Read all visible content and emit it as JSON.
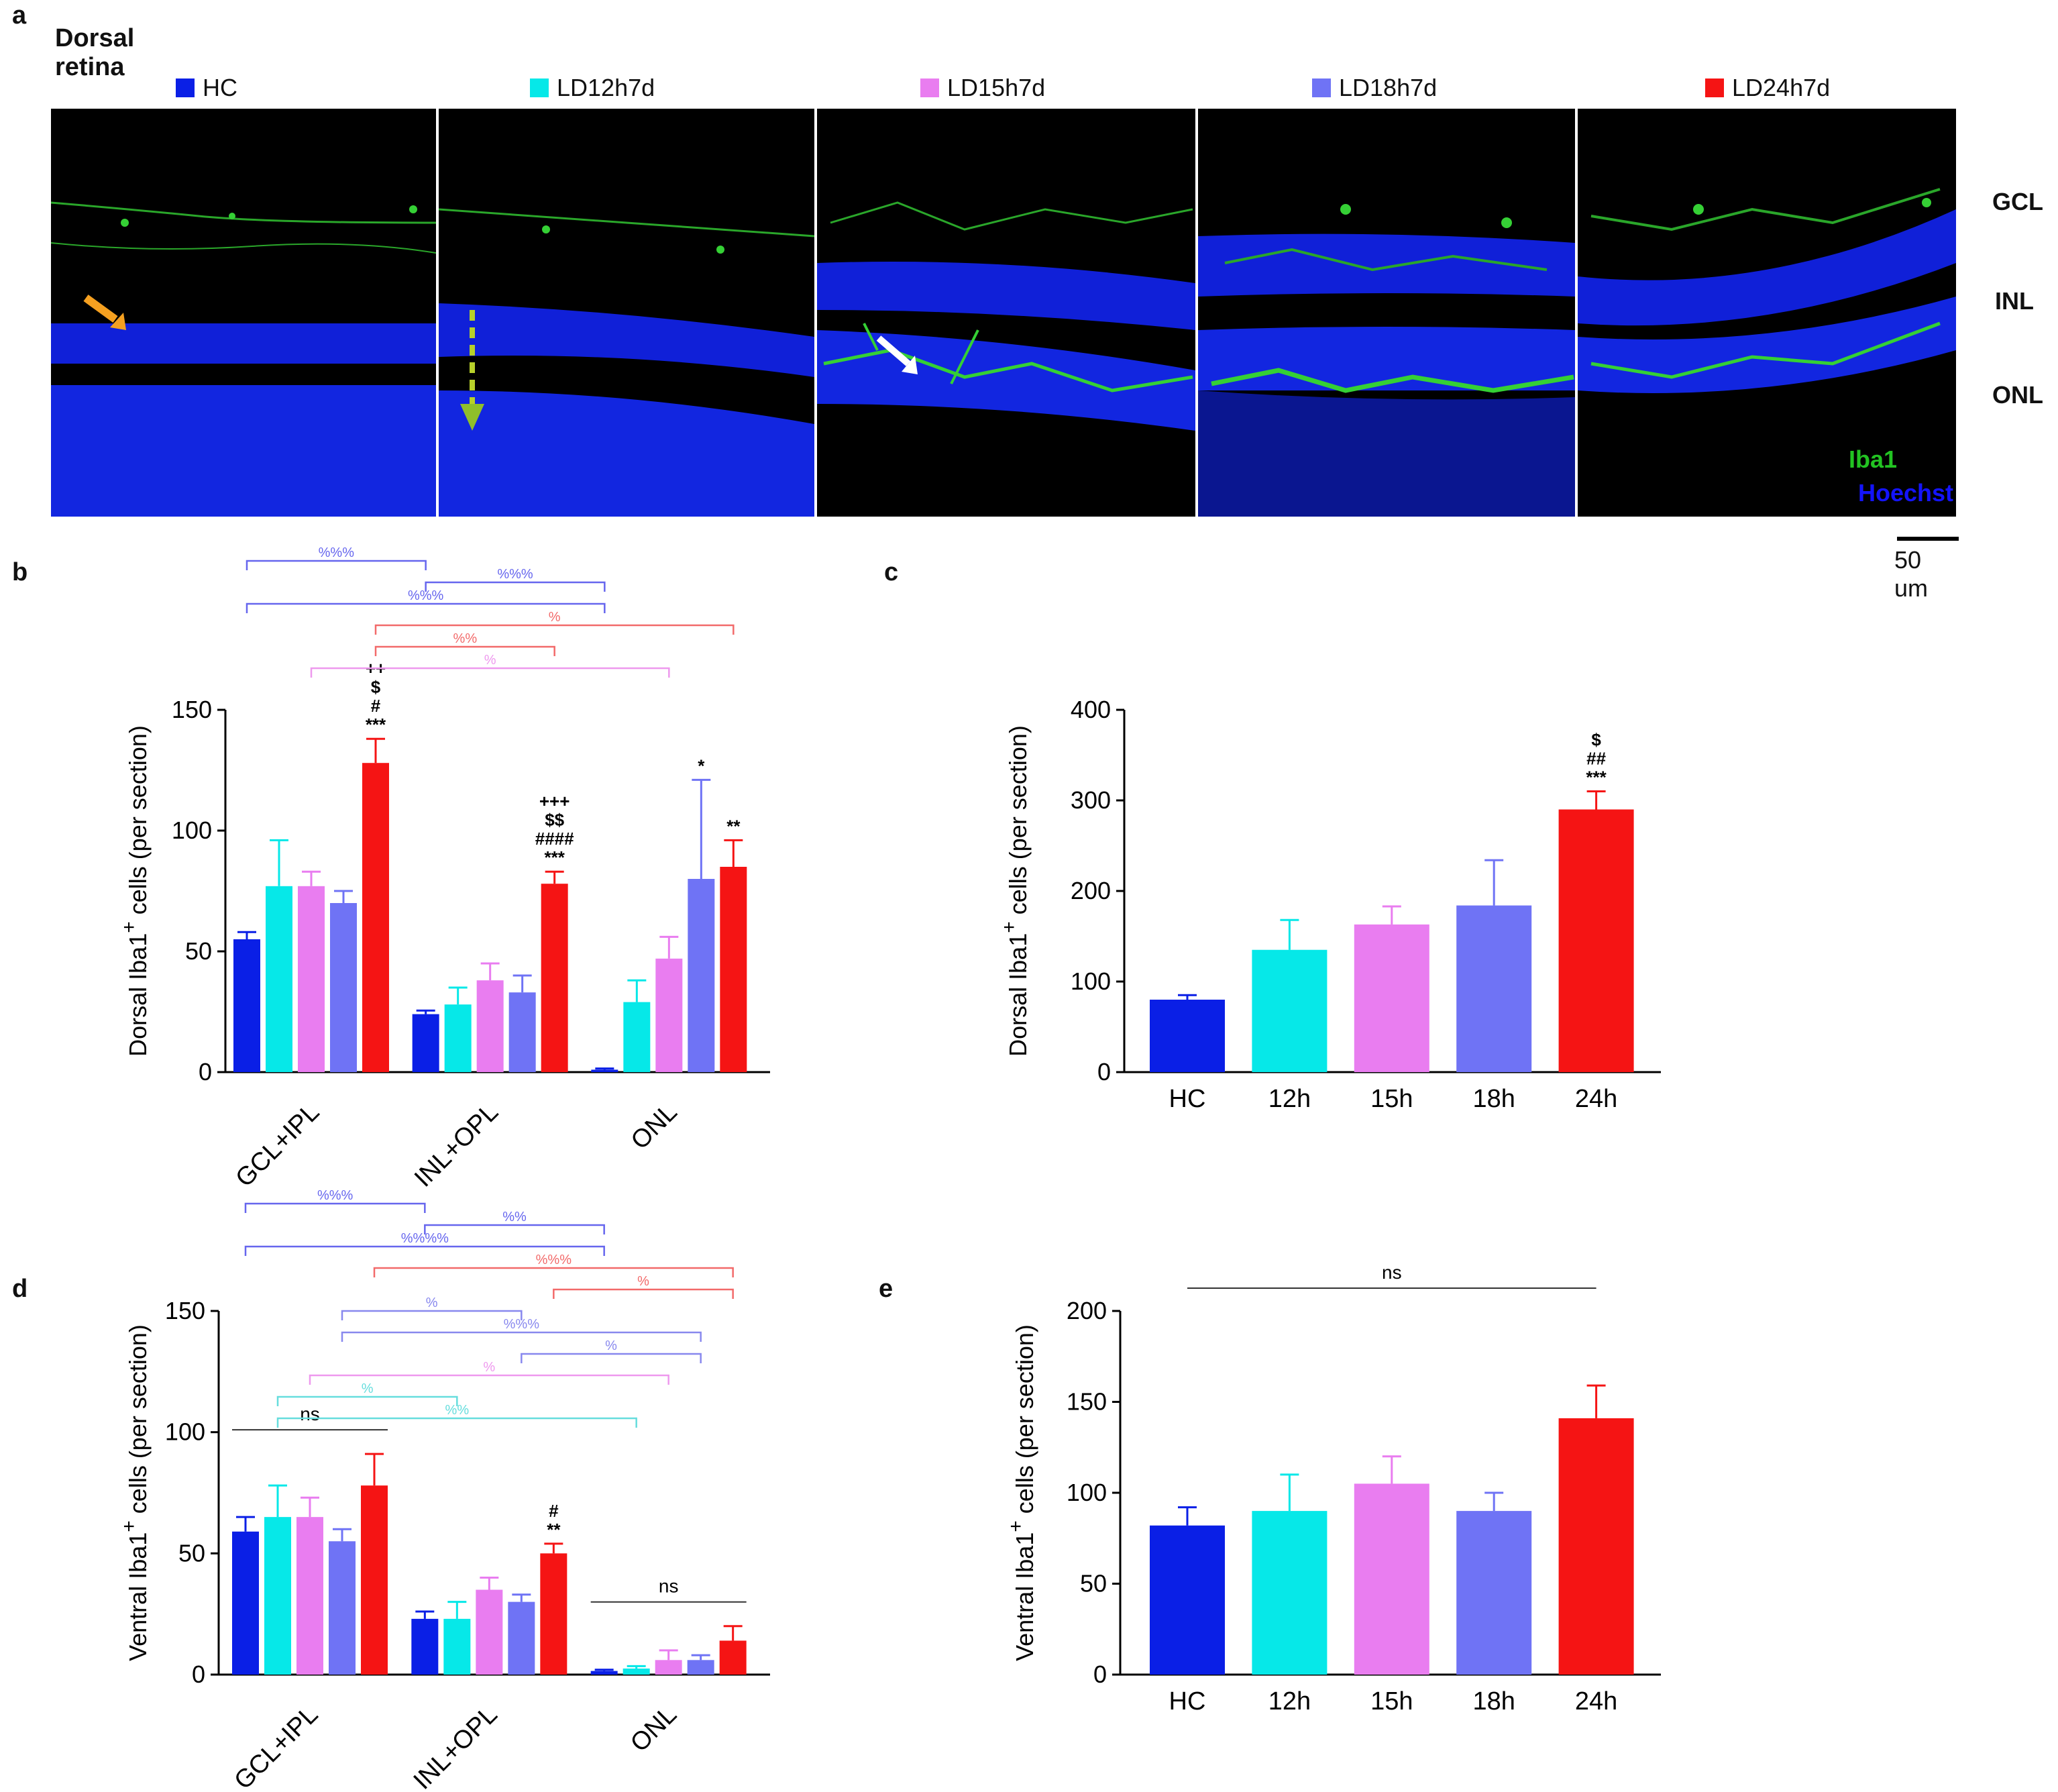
{
  "figure": {
    "panel_labels": {
      "a": "a",
      "b": "b",
      "c": "c",
      "d": "d",
      "e": "e"
    },
    "title": "Dorsal retina",
    "groups": [
      {
        "name": "HC",
        "color": "#0a1fe6"
      },
      {
        "name": "LD12h7d",
        "color": "#06e8e8"
      },
      {
        "name": "LD15h7d",
        "color": "#e97df0"
      },
      {
        "name": "LD18h7d",
        "color": "#6f73f5"
      },
      {
        "name": "LD24h7d",
        "color": "#f51414"
      }
    ],
    "layer_labels": [
      "GCL",
      "INL",
      "ONL"
    ],
    "stains": [
      {
        "name": "Iba1",
        "color": "#22c322"
      },
      {
        "name": "Hoechst",
        "color": "#1414ff"
      }
    ],
    "scale_bar": "50 um",
    "colors": {
      "HC": "#0a1fe6",
      "12h": "#06e8e8",
      "15h": "#e97df0",
      "18h": "#6f73f5",
      "24h": "#f51414",
      "axis": "#000000"
    }
  },
  "chart_data": [
    {
      "id": "b",
      "type": "bar",
      "ylabel_main": "Dorsal Iba1",
      "ylabel_sup": "+",
      "ylabel_tail": " cells (per section)",
      "categories": [
        "GCL+IPL",
        "INL+OPL",
        "ONL"
      ],
      "ylim": [
        0,
        150
      ],
      "yticks": [
        0,
        50,
        100,
        150
      ],
      "series": [
        {
          "name": "HC",
          "values": [
            55,
            24,
            1
          ],
          "errors": [
            3,
            1.5,
            0.5
          ]
        },
        {
          "name": "LD12h7d",
          "values": [
            77,
            28,
            29
          ],
          "errors": [
            19,
            7,
            9
          ]
        },
        {
          "name": "LD15h7d",
          "values": [
            77,
            38,
            47
          ],
          "errors": [
            6,
            7,
            9
          ]
        },
        {
          "name": "LD18h7d",
          "values": [
            70,
            33,
            80
          ],
          "errors": [
            5,
            7,
            41
          ]
        },
        {
          "name": "LD24h7d",
          "values": [
            128,
            78,
            85
          ],
          "errors": [
            10,
            5,
            11
          ]
        }
      ],
      "annotations": [
        {
          "cat": 0,
          "series": 4,
          "lines": [
            "++",
            "$",
            "#",
            "***"
          ]
        },
        {
          "cat": 1,
          "series": 4,
          "lines": [
            "+++",
            "$$",
            "####",
            "***"
          ]
        },
        {
          "cat": 2,
          "series": 3,
          "lines": [
            "*"
          ]
        },
        {
          "cat": 2,
          "series": 4,
          "lines": [
            "**"
          ]
        }
      ],
      "brackets": [
        {
          "from": [
            0,
            0
          ],
          "to": [
            1,
            0
          ],
          "label": "%%%",
          "color": "#6666ee"
        },
        {
          "from": [
            1,
            0
          ],
          "to": [
            2,
            0
          ],
          "label": "%%%",
          "color": "#6666ee"
        },
        {
          "from": [
            0,
            0
          ],
          "to": [
            2,
            0
          ],
          "label": "%%%",
          "color": "#6666ee"
        },
        {
          "from": [
            0,
            4
          ],
          "to": [
            2,
            4
          ],
          "label": "%",
          "color": "#f26a6a"
        },
        {
          "from": [
            0,
            4
          ],
          "to": [
            1,
            4
          ],
          "label": "%%",
          "color": "#f26a6a"
        },
        {
          "from": [
            0,
            2
          ],
          "to": [
            2,
            2
          ],
          "label": "%",
          "color": "#ee99ee"
        }
      ]
    },
    {
      "id": "c",
      "type": "bar",
      "ylabel_main": "Dorsal Iba1",
      "ylabel_sup": "+",
      "ylabel_tail": " cells (per section)",
      "categories": [
        "HC",
        "12h",
        "15h",
        "18h",
        "24h"
      ],
      "ylim": [
        0,
        400
      ],
      "yticks": [
        0,
        100,
        200,
        300,
        400
      ],
      "values": [
        80,
        135,
        163,
        184,
        290
      ],
      "errors": [
        5,
        33,
        20,
        50,
        20
      ],
      "annotations": [
        {
          "bar": 4,
          "lines": [
            "$",
            "##",
            "***"
          ]
        }
      ]
    },
    {
      "id": "d",
      "type": "bar",
      "ylabel_main": "Ventral Iba1",
      "ylabel_sup": "+",
      "ylabel_tail": " cells (per section)",
      "categories": [
        "GCL+IPL",
        "INL+OPL",
        "ONL"
      ],
      "ylim": [
        0,
        150
      ],
      "yticks": [
        0,
        50,
        100,
        150
      ],
      "series": [
        {
          "name": "HC",
          "values": [
            59,
            23,
            1.5
          ],
          "errors": [
            6,
            3,
            0.5
          ]
        },
        {
          "name": "LD12h7d",
          "values": [
            65,
            23,
            2.5
          ],
          "errors": [
            13,
            7,
            1
          ]
        },
        {
          "name": "LD15h7d",
          "values": [
            65,
            35,
            6
          ],
          "errors": [
            8,
            5,
            4
          ]
        },
        {
          "name": "LD18h7d",
          "values": [
            55,
            30,
            6
          ],
          "errors": [
            5,
            3,
            2
          ]
        },
        {
          "name": "LD24h7d",
          "values": [
            78,
            50,
            14
          ],
          "errors": [
            13,
            4,
            6
          ]
        }
      ],
      "annotations": [
        {
          "cat": 1,
          "series": 4,
          "lines": [
            "#",
            "**"
          ]
        }
      ],
      "ns_lines": [
        {
          "cat": 0,
          "label": "ns"
        },
        {
          "cat": 2,
          "label": "ns"
        }
      ],
      "brackets": [
        {
          "from": [
            0,
            0
          ],
          "to": [
            1,
            0
          ],
          "label": "%%%",
          "color": "#6666ee"
        },
        {
          "from": [
            1,
            0
          ],
          "to": [
            2,
            0
          ],
          "label": "%%",
          "color": "#6666ee"
        },
        {
          "from": [
            0,
            0
          ],
          "to": [
            2,
            0
          ],
          "label": "%%%%",
          "color": "#6666ee"
        },
        {
          "from": [
            0,
            4
          ],
          "to": [
            2,
            4
          ],
          "label": "%%%",
          "color": "#f26a6a"
        },
        {
          "from": [
            1,
            4
          ],
          "to": [
            2,
            4
          ],
          "label": "%",
          "color": "#f26a6a"
        },
        {
          "from": [
            0,
            3
          ],
          "to": [
            1,
            3
          ],
          "label": "%",
          "color": "#8888ee"
        },
        {
          "from": [
            0,
            3
          ],
          "to": [
            2,
            3
          ],
          "label": "%%%",
          "color": "#8888ee"
        },
        {
          "from": [
            1,
            3
          ],
          "to": [
            2,
            3
          ],
          "label": "%",
          "color": "#8888ee"
        },
        {
          "from": [
            0,
            2
          ],
          "to": [
            2,
            2
          ],
          "label": "%",
          "color": "#ee99ee"
        },
        {
          "from": [
            0,
            1
          ],
          "to": [
            1,
            1
          ],
          "label": "%",
          "color": "#66dddd"
        },
        {
          "from": [
            0,
            1
          ],
          "to": [
            2,
            1
          ],
          "label": "%%",
          "color": "#66dddd"
        }
      ]
    },
    {
      "id": "e",
      "type": "bar",
      "ylabel_main": "Ventral Iba1",
      "ylabel_sup": "+",
      "ylabel_tail": " cells (per section)",
      "categories": [
        "HC",
        "12h",
        "15h",
        "18h",
        "24h"
      ],
      "ylim": [
        0,
        200
      ],
      "yticks": [
        0,
        50,
        100,
        150,
        200
      ],
      "values": [
        82,
        90,
        105,
        90,
        141
      ],
      "errors": [
        10,
        20,
        15,
        10,
        18
      ],
      "ns_label": "ns"
    }
  ]
}
